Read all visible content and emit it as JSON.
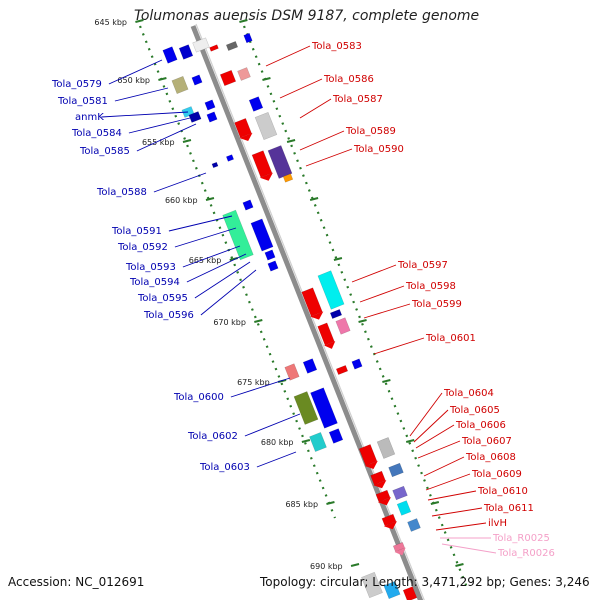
{
  "title": "Tolumonas auensis DSM 9187, complete genome",
  "footer": {
    "accession": "Accession: NC_012691",
    "topology": "Topology: circular; Length: 3,471,292 bp; Genes: 3,246"
  },
  "colors": {
    "backbone": "#8c8c8c",
    "left_label": "#0000b0",
    "right_label": "#d00000",
    "rna_label": "#f4a0c8",
    "tick": "#2a7a2a"
  },
  "kbp_marks": [
    {
      "label": "645 kbp",
      "pos": 0.0
    },
    {
      "label": "650 kbp",
      "pos": 1.0
    },
    {
      "label": "655 kbp",
      "pos": 2.0
    },
    {
      "label": "660 kbp",
      "pos": 3.0
    },
    {
      "label": "665 kbp",
      "pos": 4.0
    },
    {
      "label": "670 kbp",
      "pos": 5.0
    },
    {
      "label": "675 kbp",
      "pos": 6.0
    },
    {
      "label": "680 kbp",
      "pos": 7.0
    },
    {
      "label": "685 kbp",
      "pos": 8.0
    },
    {
      "label": "690 kbp",
      "pos": 9.0
    }
  ],
  "left_labels": [
    "Tola_0579",
    "Tola_0581",
    "anmK",
    "Tola_0584",
    "Tola_0585",
    "Tola_0588",
    "Tola_0591",
    "Tola_0592",
    "Tola_0593",
    "Tola_0594",
    "Tola_0595",
    "Tola_0596",
    "Tola_0600",
    "Tola_0602",
    "Tola_0603"
  ],
  "right_labels": [
    "Tola_0583",
    "Tola_0586",
    "Tola_0587",
    "Tola_0589",
    "Tola_0590",
    "Tola_0597",
    "Tola_0598",
    "Tola_0599",
    "Tola_0601",
    "Tola_0604",
    "Tola_0605",
    "Tola_0606",
    "Tola_0607",
    "Tola_0608",
    "Tola_0609",
    "Tola_0610",
    "Tola_0611",
    "ilvH"
  ],
  "rna_labels": [
    "Tola_R0025",
    "Tola_R0026"
  ]
}
